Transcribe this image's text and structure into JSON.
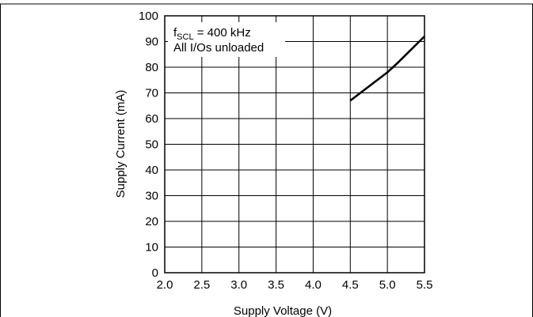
{
  "chart_data": {
    "type": "line",
    "xlabel": "Supply Voltage (V)",
    "ylabel": "Supply Current (mA)",
    "xlim": [
      2.0,
      5.5
    ],
    "ylim": [
      0,
      100
    ],
    "x_ticks": [
      "2.0",
      "2.5",
      "3.0",
      "3.5",
      "4.0",
      "4.5",
      "5.0",
      "5.5"
    ],
    "y_ticks": [
      "0",
      "10",
      "20",
      "30",
      "40",
      "50",
      "60",
      "70",
      "80",
      "90",
      "100"
    ],
    "grid": true,
    "annotation": {
      "line1_prefix": "f",
      "line1_sub": "SCL",
      "line1_suffix": " = 400 kHz",
      "line2": "All I/Os unloaded"
    },
    "series": [
      {
        "x": [
          4.5,
          5.0,
          5.15,
          5.5
        ],
        "y": [
          67,
          78,
          82,
          92
        ]
      }
    ],
    "colors": {
      "line": "#000000",
      "grid": "#000000"
    }
  }
}
